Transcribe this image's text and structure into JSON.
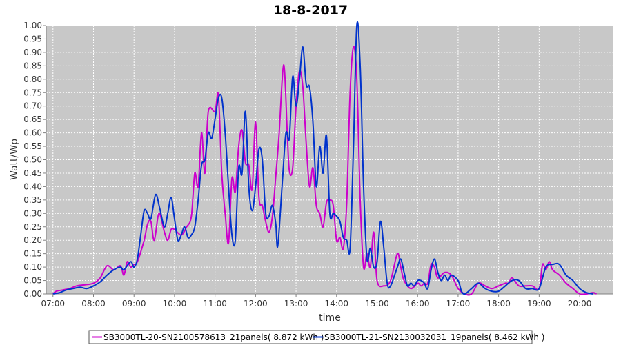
{
  "chart_data": {
    "type": "line",
    "title": "18-8-2017",
    "xlabel": "time",
    "ylabel": "Watt/Wp",
    "xlim": [
      "06:50",
      "20:50"
    ],
    "ylim": [
      0,
      1.0
    ],
    "x_ticks": [
      "07:00",
      "08:00",
      "09:00",
      "10:00",
      "11:00",
      "12:00",
      "13:00",
      "14:00",
      "15:00",
      "16:00",
      "17:00",
      "18:00",
      "19:00",
      "20:00"
    ],
    "y_ticks": [
      "0.00",
      "0.05",
      "0.10",
      "0.15",
      "0.20",
      "0.25",
      "0.30",
      "0.35",
      "0.40",
      "0.45",
      "0.50",
      "0.55",
      "0.60",
      "0.65",
      "0.70",
      "0.75",
      "0.80",
      "0.85",
      "0.90",
      "0.95",
      "1.00"
    ],
    "grid": true,
    "plot_background": "#c8c8c8",
    "grid_color": "#ffffff",
    "legend_position": "bottom",
    "series": [
      {
        "name": "SB3000TL-20-SN2100578613_21panels( 8.872 kWh )",
        "color": "#cc00cc",
        "points": [
          [
            "07:00",
            0.0
          ],
          [
            "07:05",
            0.01
          ],
          [
            "07:15",
            0.015
          ],
          [
            "07:25",
            0.02
          ],
          [
            "07:35",
            0.03
          ],
          [
            "07:50",
            0.035
          ],
          [
            "08:00",
            0.04
          ],
          [
            "08:10",
            0.06
          ],
          [
            "08:20",
            0.105
          ],
          [
            "08:30",
            0.09
          ],
          [
            "08:40",
            0.105
          ],
          [
            "08:45",
            0.07
          ],
          [
            "08:50",
            0.12
          ],
          [
            "08:55",
            0.1
          ],
          [
            "09:00",
            0.11
          ],
          [
            "09:05",
            0.12
          ],
          [
            "09:15",
            0.2
          ],
          [
            "09:20",
            0.26
          ],
          [
            "09:25",
            0.27
          ],
          [
            "09:30",
            0.2
          ],
          [
            "09:37",
            0.3
          ],
          [
            "09:45",
            0.23
          ],
          [
            "09:50",
            0.2
          ],
          [
            "09:55",
            0.24
          ],
          [
            "10:00",
            0.24
          ],
          [
            "10:10",
            0.22
          ],
          [
            "10:18",
            0.25
          ],
          [
            "10:25",
            0.29
          ],
          [
            "10:30",
            0.45
          ],
          [
            "10:35",
            0.4
          ],
          [
            "10:40",
            0.6
          ],
          [
            "10:45",
            0.45
          ],
          [
            "10:50",
            0.68
          ],
          [
            "11:00",
            0.68
          ],
          [
            "11:05",
            0.74
          ],
          [
            "11:10",
            0.45
          ],
          [
            "11:15",
            0.3
          ],
          [
            "11:20",
            0.19
          ],
          [
            "11:25",
            0.43
          ],
          [
            "11:30",
            0.38
          ],
          [
            "11:35",
            0.55
          ],
          [
            "11:40",
            0.61
          ],
          [
            "11:45",
            0.49
          ],
          [
            "11:50",
            0.48
          ],
          [
            "11:55",
            0.39
          ],
          [
            "12:00",
            0.64
          ],
          [
            "12:05",
            0.36
          ],
          [
            "12:10",
            0.33
          ],
          [
            "12:15",
            0.27
          ],
          [
            "12:20",
            0.23
          ],
          [
            "12:25",
            0.29
          ],
          [
            "12:30",
            0.44
          ],
          [
            "12:35",
            0.6
          ],
          [
            "12:40",
            0.82
          ],
          [
            "12:43",
            0.83
          ],
          [
            "12:47",
            0.6
          ],
          [
            "12:50",
            0.46
          ],
          [
            "12:55",
            0.47
          ],
          [
            "13:00",
            0.7
          ],
          [
            "13:05",
            0.83
          ],
          [
            "13:10",
            0.77
          ],
          [
            "13:15",
            0.56
          ],
          [
            "13:20",
            0.4
          ],
          [
            "13:25",
            0.47
          ],
          [
            "13:30",
            0.33
          ],
          [
            "13:35",
            0.3
          ],
          [
            "13:40",
            0.25
          ],
          [
            "13:45",
            0.34
          ],
          [
            "13:50",
            0.35
          ],
          [
            "13:55",
            0.33
          ],
          [
            "14:00",
            0.2
          ],
          [
            "14:05",
            0.21
          ],
          [
            "14:10",
            0.17
          ],
          [
            "14:15",
            0.34
          ],
          [
            "14:20",
            0.75
          ],
          [
            "14:25",
            0.92
          ],
          [
            "14:30",
            0.8
          ],
          [
            "14:35",
            0.35
          ],
          [
            "14:40",
            0.1
          ],
          [
            "14:45",
            0.15
          ],
          [
            "14:50",
            0.1
          ],
          [
            "14:55",
            0.23
          ],
          [
            "15:00",
            0.05
          ],
          [
            "15:10",
            0.03
          ],
          [
            "15:20",
            0.05
          ],
          [
            "15:30",
            0.15
          ],
          [
            "15:35",
            0.1
          ],
          [
            "15:40",
            0.05
          ],
          [
            "15:50",
            0.02
          ],
          [
            "16:00",
            0.04
          ],
          [
            "16:05",
            0.03
          ],
          [
            "16:10",
            0.04
          ],
          [
            "16:15",
            0.04
          ],
          [
            "16:20",
            0.11
          ],
          [
            "16:25",
            0.1
          ],
          [
            "16:30",
            0.06
          ],
          [
            "16:40",
            0.08
          ],
          [
            "16:50",
            0.07
          ],
          [
            "17:00",
            0.02
          ],
          [
            "17:10",
            0.0
          ],
          [
            "17:20",
            0.0
          ],
          [
            "17:30",
            0.04
          ],
          [
            "17:40",
            0.03
          ],
          [
            "17:50",
            0.02
          ],
          [
            "18:00",
            0.03
          ],
          [
            "18:10",
            0.04
          ],
          [
            "18:15",
            0.04
          ],
          [
            "18:20",
            0.06
          ],
          [
            "18:30",
            0.03
          ],
          [
            "18:40",
            0.03
          ],
          [
            "18:50",
            0.03
          ],
          [
            "19:00",
            0.02
          ],
          [
            "19:05",
            0.11
          ],
          [
            "19:10",
            0.09
          ],
          [
            "19:15",
            0.12
          ],
          [
            "19:20",
            0.09
          ],
          [
            "19:30",
            0.07
          ],
          [
            "19:40",
            0.04
          ],
          [
            "19:50",
            0.02
          ],
          [
            "20:00",
            0.0
          ],
          [
            "20:10",
            0.0
          ],
          [
            "20:20",
            0.005
          ],
          [
            "20:25",
            0.0
          ]
        ]
      },
      {
        "name": "SB3000TL-21-SN2130032031_19panels( 8.462 kWh )",
        "color": "#0033cc",
        "points": [
          [
            "07:00",
            0.0
          ],
          [
            "07:10",
            0.005
          ],
          [
            "07:20",
            0.015
          ],
          [
            "07:30",
            0.02
          ],
          [
            "07:40",
            0.025
          ],
          [
            "07:50",
            0.02
          ],
          [
            "08:00",
            0.03
          ],
          [
            "08:10",
            0.045
          ],
          [
            "08:20",
            0.07
          ],
          [
            "08:30",
            0.09
          ],
          [
            "08:40",
            0.1
          ],
          [
            "08:45",
            0.09
          ],
          [
            "08:55",
            0.12
          ],
          [
            "09:00",
            0.1
          ],
          [
            "09:05",
            0.13
          ],
          [
            "09:10",
            0.22
          ],
          [
            "09:15",
            0.31
          ],
          [
            "09:20",
            0.3
          ],
          [
            "09:25",
            0.28
          ],
          [
            "09:32",
            0.37
          ],
          [
            "09:38",
            0.32
          ],
          [
            "09:45",
            0.25
          ],
          [
            "09:50",
            0.3
          ],
          [
            "09:55",
            0.36
          ],
          [
            "10:00",
            0.28
          ],
          [
            "10:05",
            0.2
          ],
          [
            "10:10",
            0.22
          ],
          [
            "10:15",
            0.25
          ],
          [
            "10:20",
            0.21
          ],
          [
            "10:25",
            0.22
          ],
          [
            "10:30",
            0.25
          ],
          [
            "10:35",
            0.35
          ],
          [
            "10:40",
            0.48
          ],
          [
            "10:45",
            0.5
          ],
          [
            "10:50",
            0.6
          ],
          [
            "10:55",
            0.58
          ],
          [
            "11:00",
            0.65
          ],
          [
            "11:05",
            0.73
          ],
          [
            "11:10",
            0.73
          ],
          [
            "11:15",
            0.6
          ],
          [
            "11:20",
            0.4
          ],
          [
            "11:25",
            0.22
          ],
          [
            "11:30",
            0.2
          ],
          [
            "11:35",
            0.47
          ],
          [
            "11:40",
            0.45
          ],
          [
            "11:45",
            0.68
          ],
          [
            "11:50",
            0.4
          ],
          [
            "11:55",
            0.31
          ],
          [
            "12:00",
            0.4
          ],
          [
            "12:05",
            0.54
          ],
          [
            "12:10",
            0.5
          ],
          [
            "12:15",
            0.3
          ],
          [
            "12:20",
            0.29
          ],
          [
            "12:25",
            0.33
          ],
          [
            "12:30",
            0.26
          ],
          [
            "12:33",
            0.18
          ],
          [
            "12:40",
            0.43
          ],
          [
            "12:45",
            0.6
          ],
          [
            "12:50",
            0.58
          ],
          [
            "12:55",
            0.81
          ],
          [
            "13:00",
            0.7
          ],
          [
            "13:05",
            0.8
          ],
          [
            "13:10",
            0.92
          ],
          [
            "13:15",
            0.78
          ],
          [
            "13:20",
            0.77
          ],
          [
            "13:25",
            0.64
          ],
          [
            "13:30",
            0.4
          ],
          [
            "13:35",
            0.55
          ],
          [
            "13:40",
            0.45
          ],
          [
            "13:45",
            0.59
          ],
          [
            "13:50",
            0.3
          ],
          [
            "13:55",
            0.3
          ],
          [
            "14:00",
            0.29
          ],
          [
            "14:05",
            0.27
          ],
          [
            "14:10",
            0.21
          ],
          [
            "14:15",
            0.2
          ],
          [
            "14:20",
            0.17
          ],
          [
            "14:25",
            0.55
          ],
          [
            "14:30",
            1.0
          ],
          [
            "14:35",
            0.85
          ],
          [
            "14:40",
            0.4
          ],
          [
            "14:45",
            0.13
          ],
          [
            "14:50",
            0.17
          ],
          [
            "14:55",
            0.1
          ],
          [
            "15:00",
            0.12
          ],
          [
            "15:05",
            0.27
          ],
          [
            "15:10",
            0.17
          ],
          [
            "15:15",
            0.04
          ],
          [
            "15:20",
            0.03
          ],
          [
            "15:30",
            0.1
          ],
          [
            "15:35",
            0.13
          ],
          [
            "15:40",
            0.08
          ],
          [
            "15:45",
            0.03
          ],
          [
            "15:50",
            0.04
          ],
          [
            "15:55",
            0.03
          ],
          [
            "16:00",
            0.05
          ],
          [
            "16:05",
            0.05
          ],
          [
            "16:10",
            0.04
          ],
          [
            "16:15",
            0.02
          ],
          [
            "16:20",
            0.09
          ],
          [
            "16:25",
            0.13
          ],
          [
            "16:30",
            0.08
          ],
          [
            "16:35",
            0.05
          ],
          [
            "16:40",
            0.07
          ],
          [
            "16:45",
            0.05
          ],
          [
            "16:50",
            0.07
          ],
          [
            "17:00",
            0.05
          ],
          [
            "17:05",
            0.01
          ],
          [
            "17:10",
            0.0
          ],
          [
            "17:20",
            0.02
          ],
          [
            "17:30",
            0.04
          ],
          [
            "17:40",
            0.02
          ],
          [
            "17:50",
            0.01
          ],
          [
            "18:00",
            0.01
          ],
          [
            "18:10",
            0.03
          ],
          [
            "18:20",
            0.05
          ],
          [
            "18:30",
            0.05
          ],
          [
            "18:40",
            0.02
          ],
          [
            "18:50",
            0.02
          ],
          [
            "19:00",
            0.02
          ],
          [
            "19:10",
            0.1
          ],
          [
            "19:20",
            0.11
          ],
          [
            "19:30",
            0.11
          ],
          [
            "19:40",
            0.07
          ],
          [
            "19:50",
            0.05
          ],
          [
            "20:00",
            0.02
          ],
          [
            "20:10",
            0.005
          ],
          [
            "20:20",
            0.0
          ]
        ]
      }
    ]
  }
}
